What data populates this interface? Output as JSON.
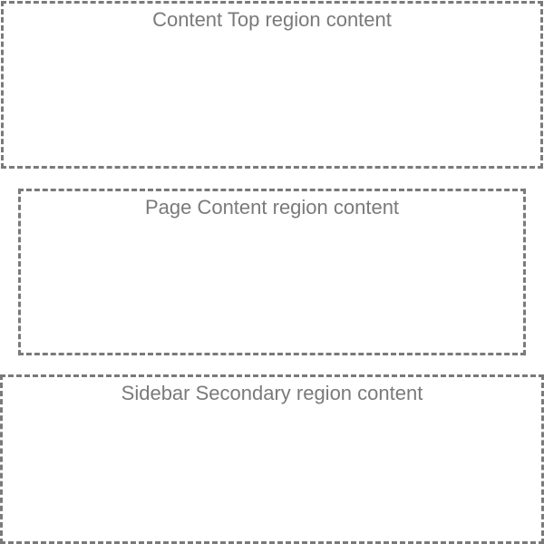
{
  "regions": {
    "content_top": {
      "label": "Content Top region content"
    },
    "page_content": {
      "label": "Page Content region content"
    },
    "sidebar_secondary": {
      "label": "Sidebar Secondary region content"
    }
  },
  "colors": {
    "border": "#7a7a7a",
    "text": "#7a7a7a",
    "background": "#ffffff"
  }
}
